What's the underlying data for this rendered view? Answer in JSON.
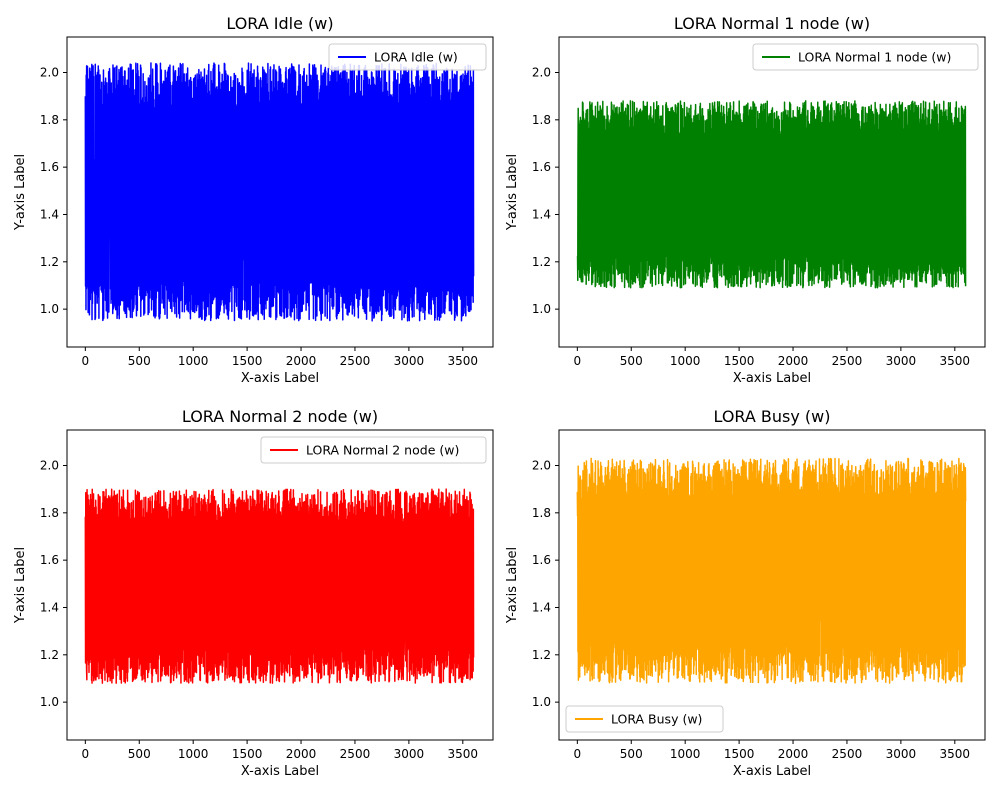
{
  "chart_data": [
    {
      "type": "line",
      "title": "LORA Idle (w)",
      "xlabel": "X-axis Label",
      "ylabel": "Y-axis Label",
      "xlim": [
        -170,
        3780
      ],
      "ylim": [
        0.84,
        2.15
      ],
      "xticks": [
        0,
        500,
        1000,
        1500,
        2000,
        2500,
        3000,
        3500
      ],
      "yticks": [
        1.0,
        1.2,
        1.4,
        1.6,
        1.8,
        2.0
      ],
      "grid": false,
      "legend_position": "upper right",
      "series": [
        {
          "name": "LORA Idle (w)",
          "color": "#0000ff",
          "x_range": [
            0,
            3600
          ],
          "oscillation_low": 0.95,
          "oscillation_high": 2.04
        }
      ]
    },
    {
      "type": "line",
      "title": "LORA Normal 1 node (w)",
      "xlabel": "X-axis Label",
      "ylabel": "Y-axis Label",
      "xlim": [
        -170,
        3780
      ],
      "ylim": [
        0.84,
        2.15
      ],
      "xticks": [
        0,
        500,
        1000,
        1500,
        2000,
        2500,
        3000,
        3500
      ],
      "yticks": [
        1.0,
        1.2,
        1.4,
        1.6,
        1.8,
        2.0
      ],
      "grid": false,
      "legend_position": "upper right",
      "series": [
        {
          "name": "LORA Normal 1 node (w)",
          "color": "#008000",
          "x_range": [
            0,
            3600
          ],
          "oscillation_low": 1.09,
          "oscillation_high": 1.88
        }
      ]
    },
    {
      "type": "line",
      "title": "LORA Normal 2 node (w)",
      "xlabel": "X-axis Label",
      "ylabel": "Y-axis Label",
      "xlim": [
        -170,
        3780
      ],
      "ylim": [
        0.84,
        2.15
      ],
      "xticks": [
        0,
        500,
        1000,
        1500,
        2000,
        2500,
        3000,
        3500
      ],
      "yticks": [
        1.0,
        1.2,
        1.4,
        1.6,
        1.8,
        2.0
      ],
      "grid": false,
      "legend_position": "upper right",
      "series": [
        {
          "name": "LORA Normal 2 node (w)",
          "color": "#ff0000",
          "x_range": [
            0,
            3600
          ],
          "oscillation_low": 1.08,
          "oscillation_high": 1.9
        }
      ]
    },
    {
      "type": "line",
      "title": "LORA Busy (w)",
      "xlabel": "X-axis Label",
      "ylabel": "Y-axis Label",
      "xlim": [
        -170,
        3780
      ],
      "ylim": [
        0.84,
        2.15
      ],
      "xticks": [
        0,
        500,
        1000,
        1500,
        2000,
        2500,
        3000,
        3500
      ],
      "yticks": [
        1.0,
        1.2,
        1.4,
        1.6,
        1.8,
        2.0
      ],
      "grid": false,
      "legend_position": "lower left",
      "series": [
        {
          "name": "LORA Busy (w)",
          "color": "#ffa500",
          "x_range": [
            0,
            3600
          ],
          "oscillation_low": 1.08,
          "oscillation_high": 2.03
        }
      ]
    }
  ]
}
